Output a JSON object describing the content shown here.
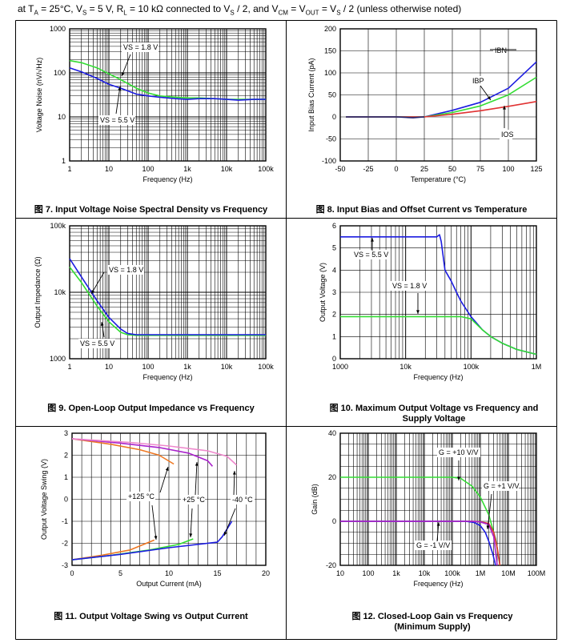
{
  "header": {
    "p1": "at T",
    "s1": "A",
    "p2": " = 25°C, V",
    "s2": "S",
    "p3": " = 5 V, R",
    "s3": "L",
    "p4": " = 10 kΩ connected to V",
    "s4": "S",
    "p5": " / 2, and V",
    "s5": "CM",
    "p6": " = V",
    "s6": "OUT",
    "p7": " = V",
    "s7": "S",
    "p8": " / 2 (unless otherwise noted)"
  },
  "colors": {
    "blue": "#1c1ce0",
    "green": "#33dd33",
    "red": "#e03232",
    "orange": "#ee7722",
    "purple": "#aa22cc",
    "pink": "#ee88cc",
    "navy": "#22226e"
  },
  "charts": [
    {
      "caption": "图 7. Input Voltage Noise Spectral Density vs Frequency",
      "chart_data": {
        "type": "line",
        "xscale": "log",
        "yscale": "log",
        "xlim": [
          1,
          100000
        ],
        "ylim": [
          1,
          1000
        ],
        "xlabel": "Frequency (Hz)",
        "ylabel": "Voltage Noise (nV/√Hz)",
        "xticks": [
          "1",
          "10",
          "100",
          "1k",
          "10k",
          "100k"
        ],
        "yticks": [
          "1",
          "10",
          "100",
          "1000"
        ],
        "grid": true,
        "series": [
          {
            "name": "VS = 1.8 V",
            "color": "green",
            "x": [
              1,
              2,
              5,
              10,
              20,
              50,
              100,
              200,
              500,
              1000,
              2000,
              5000,
              10000,
              20000,
              50000,
              100000
            ],
            "y": [
              190,
              170,
              130,
              95,
              70,
              45,
              35,
              30,
              28,
              27,
              27,
              26,
              25,
              25,
              25,
              25
            ]
          },
          {
            "name": "VS = 5.5 V",
            "color": "blue",
            "x": [
              1,
              2,
              5,
              10,
              20,
              50,
              100,
              200,
              500,
              1000,
              2000,
              5000,
              10000,
              20000,
              50000,
              100000
            ],
            "y": [
              130,
              105,
              75,
              55,
              45,
              33,
              30,
              28,
              26,
              25,
              26,
              26,
              25,
              24,
              25,
              25
            ]
          }
        ],
        "annotations": [
          "VS = 1.8 V",
          "VS = 5.5 V"
        ]
      }
    },
    {
      "caption": "图 8. Input Bias and Offset Current vs Temperature",
      "chart_data": {
        "type": "line",
        "xlim": [
          -50,
          125
        ],
        "ylim": [
          -100,
          200
        ],
        "xlabel": "Temperature (°C)",
        "ylabel": "Input Bias Current (pA)",
        "xticks": [
          "-50",
          "-25",
          "0",
          "25",
          "50",
          "75",
          "100",
          "125"
        ],
        "yticks": [
          "-100",
          "-50",
          "0",
          "50",
          "100",
          "150",
          "200"
        ],
        "grid": true,
        "series": [
          {
            "name": "IBN",
            "color": "blue",
            "x": [
              -45,
              0,
              25,
              50,
              75,
              100,
              125
            ],
            "y": [
              0,
              0,
              0,
              15,
              33,
              65,
              125
            ]
          },
          {
            "name": "IBP",
            "color": "green",
            "x": [
              -45,
              0,
              25,
              50,
              75,
              100,
              125
            ],
            "y": [
              0,
              0,
              0,
              10,
              25,
              50,
              90
            ]
          },
          {
            "name": "IOS",
            "color": "red",
            "x": [
              -45,
              0,
              25,
              50,
              75,
              100,
              125
            ],
            "y": [
              0,
              0,
              0,
              6,
              14,
              24,
              35
            ]
          },
          {
            "name": "",
            "color": "navy",
            "x": [
              -45,
              0,
              15,
              25
            ],
            "y": [
              0,
              0,
              -2,
              0
            ]
          }
        ],
        "annotations": [
          "IBN",
          "IBP",
          "IOS"
        ]
      }
    },
    {
      "caption": "图 9. Open-Loop Output Impedance vs Frequency",
      "chart_data": {
        "type": "line",
        "xscale": "log",
        "yscale": "log",
        "xlim": [
          1,
          100000
        ],
        "ylim": [
          1000,
          100000
        ],
        "xlabel": "Frequency (Hz)",
        "ylabel": "Output Impedance (Ω)",
        "xticks": [
          "1",
          "10",
          "100",
          "1k",
          "10k",
          "100k"
        ],
        "yticks": [
          "1000",
          "10k",
          "100k"
        ],
        "grid": true,
        "series": [
          {
            "name": "VS = 1.8 V",
            "color": "green",
            "x": [
              1,
              2,
              5,
              10,
              20,
              30,
              50,
              100,
              100000
            ],
            "y": [
              24000,
              14000,
              6200,
              3600,
              2500,
              2300,
              2250,
              2250,
              2250
            ]
          },
          {
            "name": "VS = 5.5 V",
            "color": "blue",
            "x": [
              1,
              2,
              5,
              10,
              20,
              30,
              50,
              100,
              100000
            ],
            "y": [
              32000,
              17000,
              7500,
              4200,
              2800,
              2400,
              2300,
              2300,
              2300
            ]
          }
        ],
        "annotations": [
          "VS = 1.8 V",
          "VS = 5.5 V"
        ]
      }
    },
    {
      "caption": "图 10. Maximum Output Voltage vs Frequency and Supply Voltage",
      "chart_data": {
        "type": "line",
        "xscale": "log",
        "xlim": [
          1000,
          1000000
        ],
        "ylim": [
          0,
          6
        ],
        "xlabel": "Frequency (Hz)",
        "ylabel": "Output Voltage (V)",
        "xticks": [
          "1000",
          "10k",
          "100k",
          "1M"
        ],
        "yticks": [
          "0",
          "1",
          "2",
          "3",
          "4",
          "5",
          "6"
        ],
        "grid": true,
        "series": [
          {
            "name": "VS = 5.5 V",
            "color": "blue",
            "x": [
              1000,
              30000,
              33000,
              35000,
              40000,
              50000,
              60000,
              70000,
              100000,
              150000,
              200000,
              300000,
              500000,
              1000000
            ],
            "y": [
              5.5,
              5.5,
              5.6,
              5.3,
              4.0,
              3.5,
              3.0,
              2.6,
              1.9,
              1.3,
              1.0,
              0.7,
              0.42,
              0.2
            ]
          },
          {
            "name": "VS = 1.8 V",
            "color": "green",
            "x": [
              1000,
              50000,
              70000,
              100000,
              150000,
              200000,
              300000,
              500000,
              1000000
            ],
            "y": [
              1.9,
              1.9,
              1.9,
              1.8,
              1.3,
              1.0,
              0.7,
              0.42,
              0.2
            ]
          }
        ],
        "annotations": [
          "VS = 5.5 V",
          "VS = 1.8 V"
        ]
      }
    },
    {
      "caption": "图 11. Output Voltage Swing vs Output Current",
      "chart_data": {
        "type": "line",
        "xlim": [
          0,
          20
        ],
        "ylim": [
          -3,
          3
        ],
        "xlabel": "Output Current (mA)",
        "ylabel": "Output Voltage Swing (V)",
        "xticks": [
          "0",
          "5",
          "10",
          "15",
          "20"
        ],
        "yticks": [
          "-3",
          "-2",
          "-1",
          "0",
          "1",
          "2",
          "3"
        ],
        "grid": true,
        "series": [
          {
            "name": "+125 °C",
            "color": "orange",
            "x": [
              0,
              4,
              7,
              9,
              10.5
            ],
            "y": [
              2.75,
              2.5,
              2.25,
              2.0,
              1.6
            ]
          },
          {
            "name": "+25 °C",
            "color": "purple",
            "x": [
              0,
              5,
              9,
              12,
              14,
              14.5
            ],
            "y": [
              2.75,
              2.55,
              2.35,
              2.1,
              1.75,
              1.5
            ]
          },
          {
            "name": "-40 °C",
            "color": "pink",
            "x": [
              0,
              6,
              10,
              14,
              16,
              17
            ],
            "y": [
              2.75,
              2.58,
              2.42,
              2.2,
              1.95,
              1.55
            ]
          },
          {
            "name": "+125 °C",
            "color": "orange",
            "x": [
              0,
              3,
              6,
              8.5
            ],
            "y": [
              -2.75,
              -2.55,
              -2.3,
              -1.85
            ]
          },
          {
            "name": "+25 °C",
            "color": "green",
            "x": [
              0,
              4,
              8,
              11,
              12.5
            ],
            "y": [
              -2.75,
              -2.55,
              -2.3,
              -2.05,
              -1.8
            ]
          },
          {
            "name": "-40 °C",
            "color": "blue",
            "x": [
              0,
              5,
              10,
              15,
              15.5,
              16.5
            ],
            "y": [
              -2.75,
              -2.5,
              -2.2,
              -1.95,
              -1.7,
              -1.0
            ]
          }
        ],
        "annotations": [
          "+125 °C",
          "+25 °C",
          "-40 °C"
        ]
      }
    },
    {
      "caption": "图 12. Closed-Loop Gain vs Frequency (Minimum Supply)",
      "chart_data": {
        "type": "line",
        "xscale": "log",
        "xlim": [
          10,
          100000000
        ],
        "ylim": [
          -20,
          40
        ],
        "xlabel": "Frequency (Hz)",
        "ylabel": "Gain (dB)",
        "xticks": [
          "10",
          "100",
          "1k",
          "10k",
          "100k",
          "1M",
          "10M",
          "100M"
        ],
        "yticks": [
          "-20",
          "0",
          "20",
          "40"
        ],
        "grid": true,
        "series": [
          {
            "name": "G = +10 V/V",
            "color": "green",
            "x": [
              10,
              100000,
              200000,
              500000,
              1000000,
              2000000,
              3500000,
              5000000
            ],
            "y": [
              20,
              20,
              19.5,
              16,
              11,
              3,
              -8,
              -20
            ]
          },
          {
            "name": "G = +1 V/V",
            "color": "red",
            "x": [
              10,
              500000,
              1000000,
              2000000,
              3000000,
              4000000,
              5000000
            ],
            "y": [
              0,
              0,
              -0.2,
              -1,
              -5,
              -12,
              -20
            ]
          },
          {
            "name": "G = -1 V/V",
            "color": "blue",
            "x": [
              10,
              300000,
              600000,
              1000000,
              1500000,
              2000000,
              2800000,
              3500000
            ],
            "y": [
              0,
              0,
              -0.5,
              -2,
              -5,
              -9,
              -15,
              -20
            ]
          },
          {
            "name": "",
            "color": "purple",
            "x": [
              10,
              500000,
              1000000,
              2000000,
              3000000,
              4000000
            ],
            "y": [
              0,
              0,
              -0.3,
              -1.5,
              -7,
              -20
            ]
          }
        ],
        "annotations": [
          "G = +10 V/V",
          "G = +1 V/V",
          "G = -1 V/V"
        ]
      }
    }
  ]
}
